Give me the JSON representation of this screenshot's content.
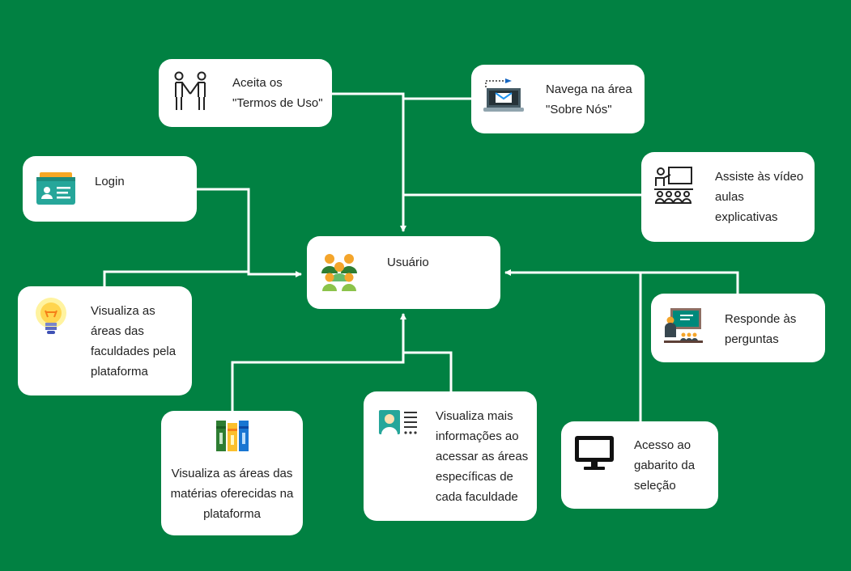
{
  "colors": {
    "background": "#018142",
    "card": "#ffffff",
    "connector": "#ffffff"
  },
  "center": {
    "label": "Usuário",
    "icon": "user-group-icon"
  },
  "nodes": {
    "termos": {
      "label": "Aceita os\n\"Termos de Uso\"",
      "icon": "handshake-icon"
    },
    "sobre": {
      "label": "Navega na área\n\"Sobre Nós\"",
      "icon": "laptop-mail-icon"
    },
    "login": {
      "label": "Login",
      "icon": "id-card-icon"
    },
    "video": {
      "label": "Assiste às vídeo\naulas\nexplicativas",
      "icon": "teacher-class-icon"
    },
    "faculdades": {
      "label": "Visualiza as\náreas das\nfaculdades pela\nplataforma",
      "icon": "lightbulb-icon"
    },
    "perguntas": {
      "label": "Responde às\nperguntas",
      "icon": "blackboard-teacher-icon"
    },
    "materias": {
      "label": "Visualiza as áreas das\nmatérias oferecidas na\nplataforma",
      "icon": "books-icon"
    },
    "informacoes": {
      "label": "Visualiza mais\ninformações ao\nacessar as áreas\nespecíficas de\ncada faculdade",
      "icon": "profile-card-icon"
    },
    "gabarito": {
      "label": "Acesso ao\ngabarito da\nseleção",
      "icon": "monitor-icon"
    }
  }
}
